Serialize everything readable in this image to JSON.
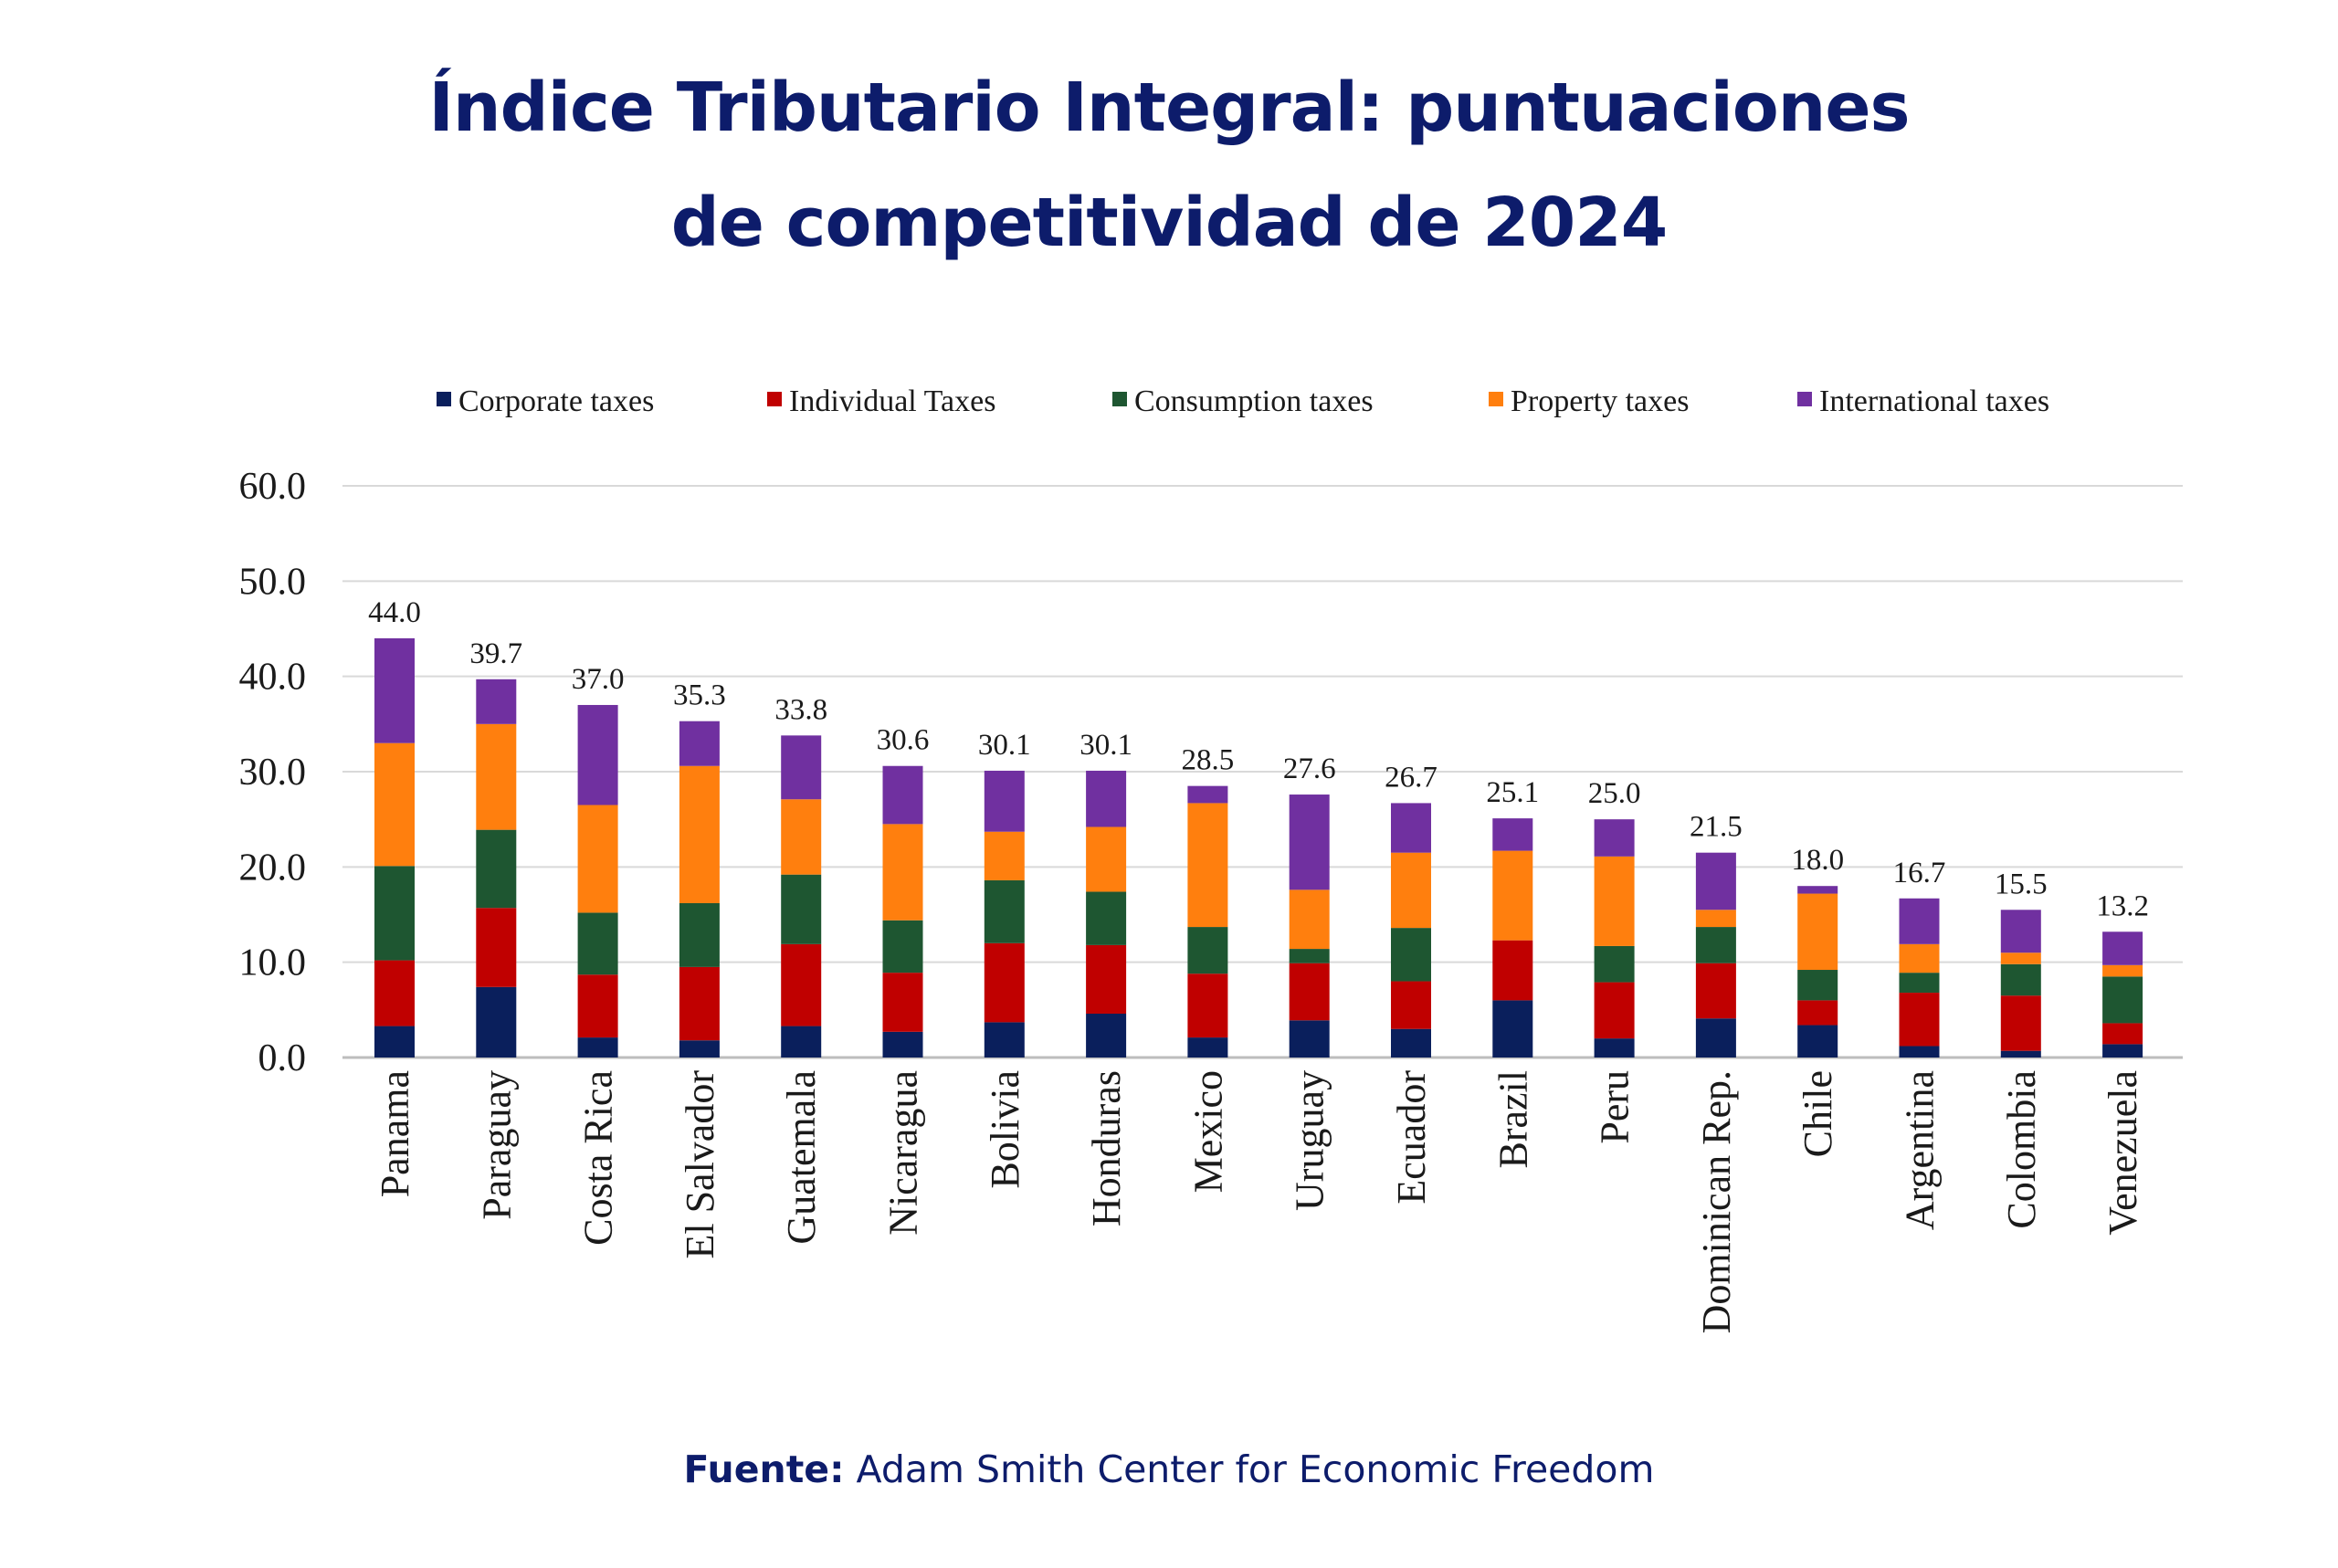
{
  "title": {
    "line1": "Índice Tributario Integral: puntuaciones",
    "line2": "de competitividad de 2024"
  },
  "source": {
    "label": "Fuente:",
    "text": "Adam Smith Center for Economic Freedom"
  },
  "chart_data": {
    "type": "bar",
    "stacked": true,
    "ylim": [
      0,
      60
    ],
    "yticks": [
      "0.0",
      "10.0",
      "20.0",
      "30.0",
      "40.0",
      "50.0",
      "60.0"
    ],
    "grid": true,
    "legend_position": "top",
    "categories": [
      "Panama",
      "Paraguay",
      "Costa Rica",
      "El Salvador",
      "Guatemala",
      "Nicaragua",
      "Bolivia",
      "Honduras",
      "Mexico",
      "Uruguay",
      "Ecuador",
      "Brazil",
      "Peru",
      "Dominican Rep.",
      "Chile",
      "Argentina",
      "Colombia",
      "Venezuela"
    ],
    "totals": [
      "44.0",
      "39.7",
      "37.0",
      "35.3",
      "33.8",
      "30.6",
      "30.1",
      "30.1",
      "28.5",
      "27.6",
      "26.7",
      "25.1",
      "25.0",
      "21.5",
      "18.0",
      "16.7",
      "15.5",
      "13.2"
    ],
    "series": [
      {
        "name": "Corporate taxes",
        "color": "#0a1f5c",
        "values": [
          3.3,
          7.4,
          2.1,
          1.8,
          3.3,
          2.7,
          3.7,
          4.6,
          2.1,
          3.9,
          3.0,
          6.0,
          2.0,
          4.1,
          3.4,
          1.2,
          0.7,
          1.4
        ]
      },
      {
        "name": "Individual Taxes",
        "color": "#c00000",
        "values": [
          6.9,
          8.3,
          6.6,
          7.7,
          8.6,
          6.2,
          8.3,
          7.2,
          6.7,
          6.0,
          5.0,
          6.3,
          5.9,
          5.8,
          2.6,
          5.6,
          5.8,
          2.2
        ]
      },
      {
        "name": "Consumption taxes",
        "color": "#1e5631",
        "values": [
          9.9,
          8.2,
          6.5,
          6.7,
          7.3,
          5.5,
          6.6,
          5.6,
          4.9,
          1.5,
          5.6,
          0.0,
          3.8,
          3.8,
          3.2,
          2.1,
          3.3,
          4.9
        ]
      },
      {
        "name": "Property taxes",
        "color": "#ff7f0e",
        "values": [
          12.9,
          11.1,
          11.3,
          14.4,
          7.9,
          10.1,
          5.1,
          6.8,
          13.0,
          6.2,
          7.9,
          9.4,
          9.4,
          1.8,
          8.0,
          3.0,
          1.2,
          1.2
        ]
      },
      {
        "name": "International taxes",
        "color": "#7030a0",
        "values": [
          11.0,
          4.7,
          10.5,
          4.7,
          6.7,
          6.1,
          6.4,
          5.9,
          1.8,
          10.0,
          5.2,
          3.4,
          3.9,
          6.0,
          0.8,
          4.8,
          4.5,
          3.5
        ]
      }
    ]
  }
}
